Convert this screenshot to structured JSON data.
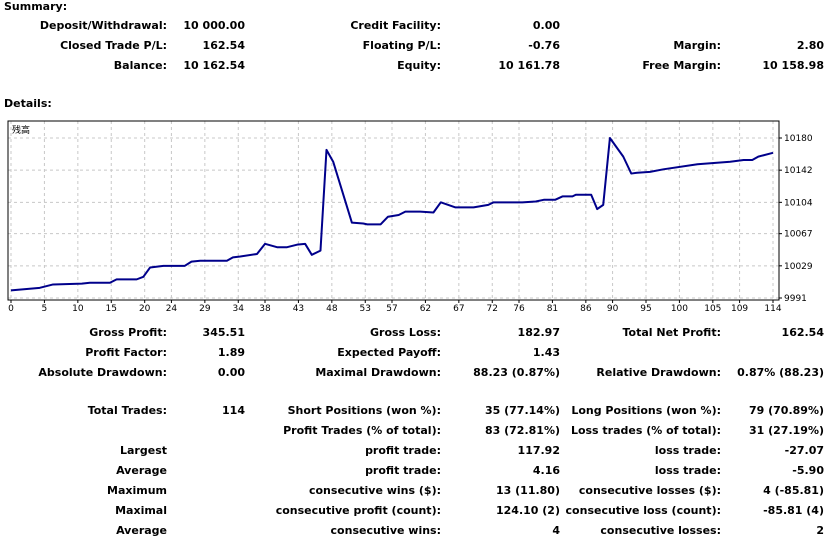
{
  "summary": {
    "title": "Summary:",
    "rows": [
      [
        "Deposit/Withdrawal:",
        "10 000.00",
        "Credit Facility:",
        "0.00",
        "",
        ""
      ],
      [
        "Closed Trade P/L:",
        "162.54",
        "Floating P/L:",
        "-0.76",
        "Margin:",
        "2.80"
      ],
      [
        "Balance:",
        "10 162.54",
        "Equity:",
        "10 161.78",
        "Free Margin:",
        "10 158.98"
      ]
    ]
  },
  "details": {
    "title": "Details:",
    "rows": [
      [
        "Gross Profit:",
        "345.51",
        "Gross Loss:",
        "182.97",
        "Total Net Profit:",
        "162.54"
      ],
      [
        "Profit Factor:",
        "1.89",
        "Expected Payoff:",
        "1.43",
        "",
        ""
      ],
      [
        "Absolute Drawdown:",
        "0.00",
        "Maximal Drawdown:",
        "88.23 (0.87%)",
        "Relative Drawdown:",
        "0.87% (88.23)"
      ],
      [
        "Total Trades:",
        "114",
        "Short Positions (won %):",
        "35 (77.14%)",
        "Long Positions (won %):",
        "79 (70.89%)"
      ],
      [
        "",
        "",
        "Profit Trades (% of total):",
        "83 (72.81%)",
        "Loss trades (% of total):",
        "31 (27.19%)"
      ],
      [
        "Largest",
        "",
        "profit trade:",
        "117.92",
        "loss trade:",
        "-27.07"
      ],
      [
        "Average",
        "",
        "profit trade:",
        "4.16",
        "loss trade:",
        "-5.90"
      ],
      [
        "Maximum",
        "",
        "consecutive wins ($):",
        "13 (11.80)",
        "consecutive losses ($):",
        "4 (-85.81)"
      ],
      [
        "Maximal",
        "",
        "consecutive profit (count):",
        "124.10 (2)",
        "consecutive loss (count):",
        "-85.81 (4)"
      ],
      [
        "Average",
        "",
        "consecutive wins:",
        "4",
        "consecutive losses:",
        "2"
      ]
    ]
  },
  "chart_data": {
    "type": "line",
    "title": "残高",
    "line_color": "#00008b",
    "grid": true,
    "xlim": [
      0,
      114
    ],
    "ylim": [
      9991,
      10200
    ],
    "x_ticks": [
      "0",
      "5",
      "10",
      "15",
      "20",
      "24",
      "29",
      "34",
      "38",
      "43",
      "48",
      "53",
      "57",
      "62",
      "67",
      "72",
      "76",
      "81",
      "86",
      "90",
      "95",
      "100",
      "105",
      "109",
      "114"
    ],
    "y_ticks": [
      "9991",
      "10029",
      "10067",
      "10104",
      "10142",
      "10180"
    ],
    "points": [
      [
        0,
        10000
      ],
      [
        4.3,
        10003
      ],
      [
        6.3,
        10007
      ],
      [
        10.6,
        10008
      ],
      [
        11.8,
        10009
      ],
      [
        14.8,
        10009
      ],
      [
        15.8,
        10013
      ],
      [
        18.8,
        10013
      ],
      [
        19.8,
        10016
      ],
      [
        20.8,
        10027
      ],
      [
        22.8,
        10029
      ],
      [
        26,
        10029
      ],
      [
        27,
        10034
      ],
      [
        28.3,
        10035
      ],
      [
        32.3,
        10035
      ],
      [
        33.2,
        10039
      ],
      [
        34.3,
        10040
      ],
      [
        36.8,
        10043
      ],
      [
        38,
        10055
      ],
      [
        39.8,
        10051
      ],
      [
        41.3,
        10051
      ],
      [
        42.8,
        10054
      ],
      [
        44,
        10055
      ],
      [
        45,
        10042
      ],
      [
        46.3,
        10047
      ],
      [
        47.2,
        10166
      ],
      [
        48.2,
        10152
      ],
      [
        51,
        10080
      ],
      [
        52.7,
        10079
      ],
      [
        53.3,
        10078
      ],
      [
        55.3,
        10078
      ],
      [
        56.4,
        10087
      ],
      [
        58,
        10089
      ],
      [
        59,
        10093
      ],
      [
        61.2,
        10093
      ],
      [
        63.2,
        10092
      ],
      [
        64.3,
        10104
      ],
      [
        66.5,
        10098
      ],
      [
        69.2,
        10098
      ],
      [
        71.4,
        10101
      ],
      [
        72.2,
        10104
      ],
      [
        76.5,
        10104
      ],
      [
        78.5,
        10105
      ],
      [
        79.7,
        10107
      ],
      [
        81.4,
        10107
      ],
      [
        82.5,
        10111
      ],
      [
        84,
        10111
      ],
      [
        84.5,
        10113
      ],
      [
        86.8,
        10113
      ],
      [
        87.7,
        10096
      ],
      [
        88.6,
        10101
      ],
      [
        89.6,
        10180
      ],
      [
        91.6,
        10158
      ],
      [
        92.8,
        10138
      ],
      [
        93.7,
        10139
      ],
      [
        95.6,
        10140
      ],
      [
        97.6,
        10143
      ],
      [
        102.7,
        10149
      ],
      [
        107.6,
        10152
      ],
      [
        109.6,
        10154
      ],
      [
        110.9,
        10154
      ],
      [
        111.8,
        10158
      ],
      [
        114,
        10162.54
      ]
    ]
  }
}
